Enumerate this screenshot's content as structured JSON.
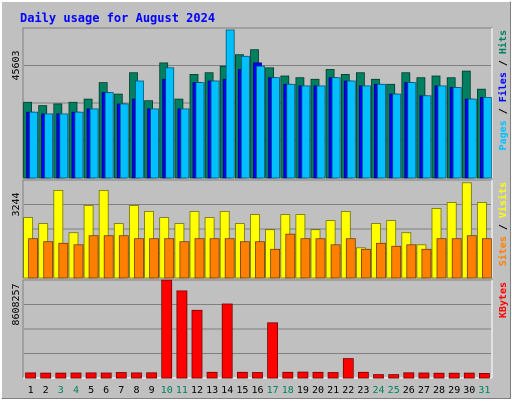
{
  "chart_data": {
    "type": "bar",
    "title": "Daily usage for August 2024",
    "x": [
      "1",
      "2",
      "3",
      "4",
      "5",
      "6",
      "7",
      "8",
      "9",
      "10",
      "11",
      "12",
      "13",
      "14",
      "15",
      "16",
      "17",
      "18",
      "19",
      "20",
      "21",
      "22",
      "23",
      "24",
      "25",
      "26",
      "27",
      "28",
      "29",
      "30",
      "31"
    ],
    "weekend_days": [
      "3",
      "4",
      "10",
      "11",
      "17",
      "18",
      "24",
      "25",
      "31"
    ],
    "panels": [
      {
        "id": "hits",
        "max_label": "45603",
        "ylim": [
          0,
          45603
        ],
        "right_labels": [
          {
            "text": "Pages",
            "color": "#00c0ff"
          },
          {
            "text": " / ",
            "color": "#000000"
          },
          {
            "text": "Files",
            "color": "#0000ff"
          },
          {
            "text": " / ",
            "color": "#000000"
          },
          {
            "text": "Hits",
            "color": "#008060"
          }
        ],
        "series": [
          {
            "name": "Hits",
            "color": "#008060",
            "values": [
              23000,
              22000,
              22500,
              23000,
              24000,
              29000,
              25500,
              32000,
              23500,
              35000,
              24000,
              31500,
              32000,
              34000,
              37500,
              39000,
              33500,
              31000,
              30500,
              30000,
              33000,
              31500,
              32000,
              30000,
              28500,
              32000,
              30500,
              31000,
              30500,
              32500,
              27000
            ]
          },
          {
            "name": "Files",
            "color": "#0000ff",
            "values": [
              20000,
              19500,
              19500,
              20000,
              21000,
              26000,
              22500,
              24000,
              21000,
              30000,
              21000,
              29000,
              29500,
              30000,
              33000,
              35000,
              30500,
              28500,
              28000,
              28000,
              30500,
              29500,
              28000,
              28500,
              25500,
              29000,
              25000,
              28000,
              27500,
              24000,
              24500
            ]
          },
          {
            "name": "Pages",
            "color": "#00c0ff",
            "values": [
              20000,
              19500,
              19500,
              20000,
              21000,
              26000,
              22500,
              29500,
              21000,
              33500,
              21000,
              29000,
              29500,
              45000,
              37000,
              34000,
              30500,
              28500,
              28000,
              28000,
              30500,
              29500,
              28000,
              28500,
              25500,
              29000,
              25000,
              28000,
              27500,
              24000,
              24500
            ]
          }
        ]
      },
      {
        "id": "visits",
        "max_label": "3244",
        "ylim": [
          0,
          3244
        ],
        "right_labels": [
          {
            "text": "Sites",
            "color": "#ff8000"
          },
          {
            "text": " / ",
            "color": "#000000"
          },
          {
            "text": "Visits",
            "color": "#ffff00"
          }
        ],
        "series": [
          {
            "name": "Visits",
            "color": "#ffff00",
            "values": [
              2000,
              1800,
              2900,
              1500,
              2400,
              2900,
              1800,
              2400,
              2200,
              2000,
              1800,
              2200,
              2000,
              2200,
              1800,
              2100,
              1600,
              2100,
              2100,
              1600,
              1900,
              2200,
              1000,
              1800,
              1900,
              1500,
              1100,
              2300,
              2500,
              3150,
              2500
            ]
          },
          {
            "name": "Sites",
            "color": "#ff8000",
            "values": [
              1300,
              1200,
              1150,
              1100,
              1400,
              1400,
              1400,
              1300,
              1300,
              1300,
              1200,
              1300,
              1300,
              1300,
              1200,
              1200,
              950,
              1450,
              1300,
              1300,
              1100,
              1300,
              950,
              1150,
              1050,
              1100,
              950,
              1300,
              1300,
              1400,
              1300
            ]
          }
        ]
      },
      {
        "id": "kbytes",
        "max_label": "8608257",
        "ylim": [
          0,
          8608257
        ],
        "right_labels": [
          {
            "text": "KBytes",
            "color": "#ff0000"
          }
        ],
        "series": [
          {
            "name": "KBytes",
            "color": "#ff0000",
            "values": [
              450000,
              430000,
              430000,
              440000,
              450000,
              440000,
              480000,
              450000,
              460000,
              8600000,
              7650000,
              5950000,
              500000,
              6500000,
              500000,
              480000,
              4850000,
              500000,
              520000,
              500000,
              480000,
              1700000,
              500000,
              300000,
              300000,
              460000,
              440000,
              420000,
              420000,
              430000,
              400000
            ]
          }
        ]
      }
    ]
  }
}
